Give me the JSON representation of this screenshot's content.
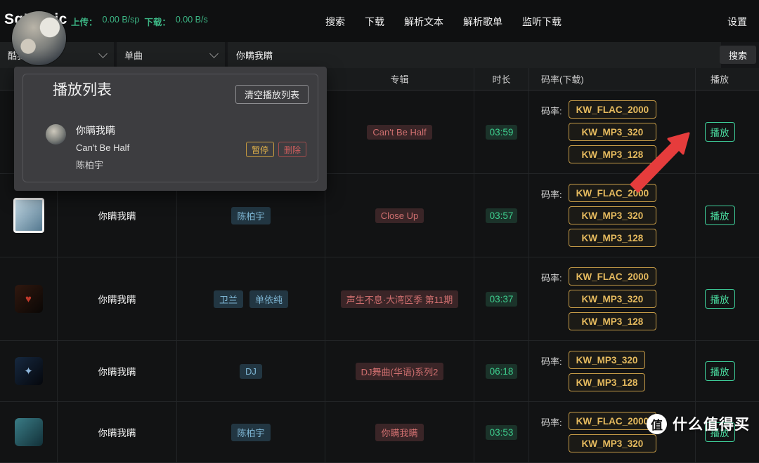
{
  "app": {
    "logo": "SqMusic",
    "upload_label": "上传：",
    "upload_value": "0.00 B/sp",
    "download_label": "下载：",
    "download_value": "0.00 B/s"
  },
  "nav": {
    "items": [
      "搜索",
      "下载",
      "解析文本",
      "解析歌单",
      "监听下载"
    ],
    "settings": "设置"
  },
  "filters": {
    "source": "酷我",
    "type": "单曲",
    "keyword": "你瞒我瞒",
    "search_button": "搜索"
  },
  "playlist_panel": {
    "title": "播放列表",
    "clear_button": "清空播放列表",
    "song": {
      "title": "你瞒我瞒",
      "album": "Can't Be Half",
      "artist": "陈柏宇",
      "pause_button": "暂停",
      "delete_button": "删除"
    }
  },
  "table": {
    "headers": {
      "cover": "",
      "song": "",
      "artist": "",
      "album": "专辑",
      "duration": "时长",
      "bitrate": "码率(下载)",
      "play": "播放"
    },
    "bitrate_label": "码率:",
    "play_label": "播放",
    "rows": [
      {
        "song": "",
        "artists": [],
        "album": "Can't Be Half",
        "duration": "03:59",
        "bitrates": [
          "KW_FLAC_2000",
          "KW_MP3_320",
          "KW_MP3_128"
        ],
        "cover": {
          "c1": "#1e1e1e",
          "c2": "#0b0b0b"
        }
      },
      {
        "song": "你瞒我瞒",
        "artists": [
          "陈柏宇"
        ],
        "album": "Close Up",
        "duration": "03:57",
        "bitrates": [
          "KW_FLAC_2000",
          "KW_MP3_320",
          "KW_MP3_128"
        ],
        "cover": {
          "c1": "#c2d8e4",
          "c2": "#54788f",
          "white_border": true
        }
      },
      {
        "song": "你瞒我瞒",
        "artists": [
          "卫兰",
          "单依纯"
        ],
        "album": "声生不息·大湾区季 第11期",
        "duration": "03:37",
        "bitrates": [
          "KW_FLAC_2000",
          "KW_MP3_320",
          "KW_MP3_128"
        ],
        "cover": {
          "c1": "#30180f",
          "c2": "#0a0705",
          "glyph": "♥",
          "glyph_color": "#c0392b"
        }
      },
      {
        "song": "你瞒我瞒",
        "artists": [
          "DJ"
        ],
        "album": "DJ舞曲(华语)系列2",
        "duration": "06:18",
        "bitrates": [
          "KW_MP3_320",
          "KW_MP3_128"
        ],
        "cover": {
          "c1": "#16283f",
          "c2": "#05070c",
          "glyph": "✦",
          "glyph_color": "#8fb8dd"
        }
      },
      {
        "song": "你瞒我瞒",
        "artists": [
          "陈柏宇"
        ],
        "album": "你瞒我瞒",
        "duration": "03:53",
        "bitrates": [
          "KW_FLAC_2000",
          "KW_MP3_320"
        ],
        "cover": {
          "c1": "#3a7c86",
          "c2": "#123038"
        }
      }
    ]
  },
  "watermark": {
    "icon_text": "值",
    "text": "什么值得买"
  },
  "colors": {
    "accent_gold": "#c49a47",
    "accent_teal": "#3ecf9a",
    "tag_blue": "#7fb7d5",
    "tag_red": "#cf6f6f",
    "tag_green": "#3ecf8e",
    "speed_green": "#3cb584",
    "arrow_red": "#e63c3c"
  }
}
